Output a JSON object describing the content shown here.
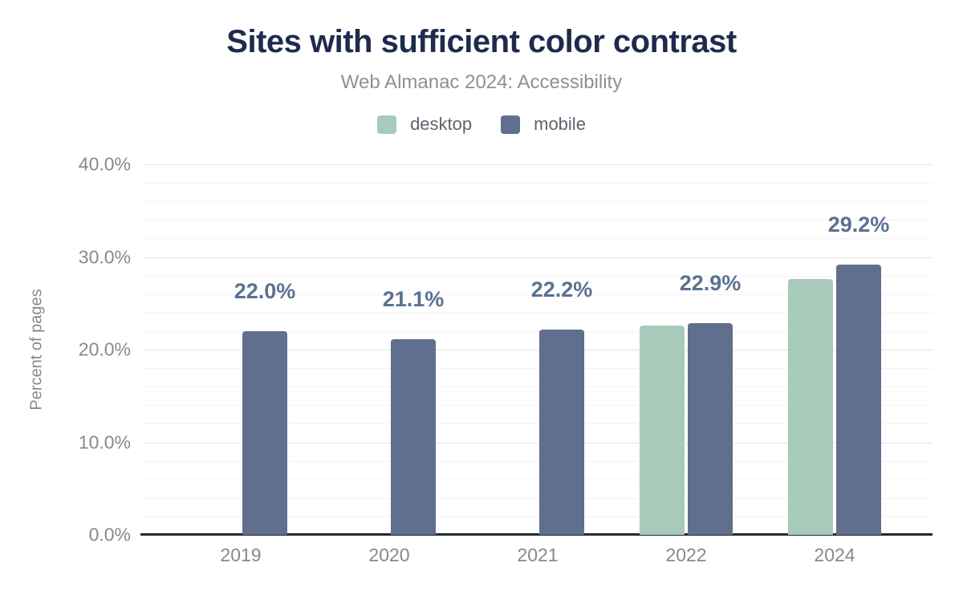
{
  "chart_data": {
    "type": "bar",
    "title": "Sites with sufficient color contrast",
    "subtitle": "Web Almanac 2024: Accessibility",
    "xlabel": "",
    "ylabel": "Percent of pages",
    "ylim": [
      0,
      40
    ],
    "y_major_tick_values": [
      0,
      10,
      20,
      30,
      40
    ],
    "y_major_tick_labels": [
      "0.0%",
      "10.0%",
      "20.0%",
      "30.0%",
      "40.0%"
    ],
    "y_minor_step": 2,
    "grid": true,
    "legend_position": "top-center",
    "categories": [
      "2019",
      "2020",
      "2021",
      "2022",
      "2024"
    ],
    "series": [
      {
        "name": "desktop",
        "color": "#a8cabb",
        "values": [
          null,
          null,
          null,
          22.6,
          27.6
        ]
      },
      {
        "name": "mobile",
        "color": "#5f6f8d",
        "values": [
          22.0,
          21.1,
          22.2,
          22.9,
          29.2
        ]
      }
    ],
    "data_labels": [
      "22.0%",
      "21.1%",
      "22.2%",
      "22.9%",
      "29.2%"
    ],
    "data_labels_series": "mobile"
  },
  "colors": {
    "title": "#1e2b4d",
    "subtitle": "#8b9097",
    "legend_text": "#5d646e",
    "tick_text": "#85898f",
    "data_label": "#5b7191",
    "axis_line": "#24282d",
    "gridline_major": "#e3e3e6",
    "gridline_minor": "#f3f3f5",
    "background": "#ffffff",
    "desktop_bar": "#a8cabb",
    "mobile_bar": "#5f6f8d"
  }
}
